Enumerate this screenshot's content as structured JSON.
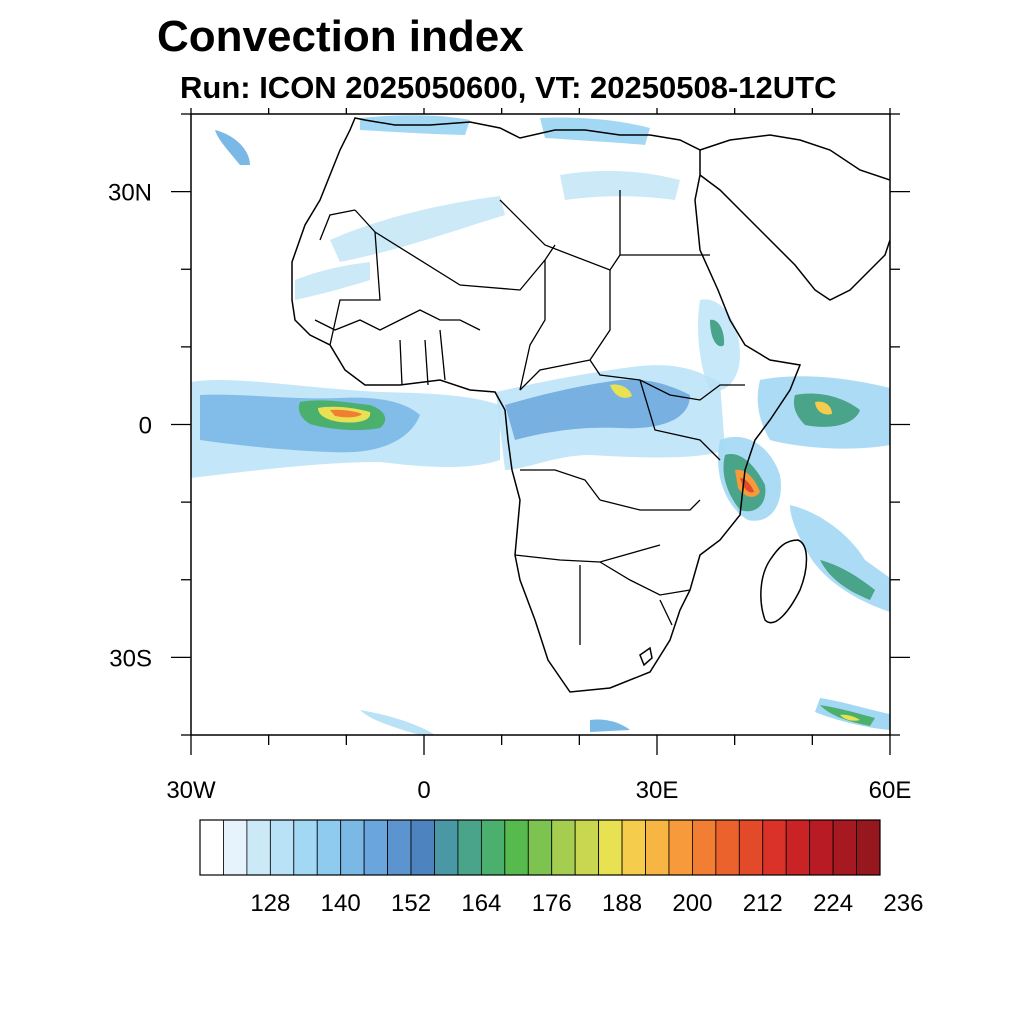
{
  "title": "Convection index",
  "subtitle": "Run: ICON 2025050600,  VT: 20250508-12UTC",
  "map": {
    "lon_range": [
      -30,
      60
    ],
    "lat_range": [
      -40,
      40
    ],
    "lon_labels": [
      {
        "lon": -30,
        "text": "30W"
      },
      {
        "lon": 0,
        "text": "0"
      },
      {
        "lon": 30,
        "text": "30E"
      },
      {
        "lon": 60,
        "text": "60E"
      }
    ],
    "lat_labels": [
      {
        "lat": 30,
        "text": "30N"
      },
      {
        "lat": 0,
        "text": "0"
      },
      {
        "lat": -30,
        "text": "30S"
      }
    ]
  },
  "colorbar": {
    "colors": [
      "#ffffff",
      "#e6f3fc",
      "#cce9f8",
      "#b9e2f7",
      "#a3d8f4",
      "#8ecbef",
      "#7ab8e6",
      "#6aa6dd",
      "#5b94cf",
      "#4d84c0",
      "#4a97a6",
      "#4aa48a",
      "#4bb06e",
      "#56ba4e",
      "#7cc350",
      "#a5cd4f",
      "#c8d74f",
      "#e8e152",
      "#f5cc4b",
      "#f7b544",
      "#f69a3b",
      "#f27e33",
      "#ec622c",
      "#e34a29",
      "#da3128",
      "#c92325",
      "#b81b23",
      "#a71920",
      "#96171d"
    ],
    "tick_labels": [
      "128",
      "140",
      "152",
      "164",
      "176",
      "188",
      "200",
      "212",
      "224",
      "236"
    ]
  },
  "convection_areas": [
    {
      "name": "gulf-of-guinea-atlantic-band",
      "color": "#7ab8e6"
    },
    {
      "name": "central-africa-band",
      "color": "#7ab8e6"
    },
    {
      "name": "east-africa-coast",
      "color": "#7ab8e6"
    },
    {
      "name": "western-indian-ocean",
      "color": "#7ab8e6"
    },
    {
      "name": "madagascar-channel",
      "color": "#7ab8e6"
    },
    {
      "name": "sahara-band",
      "color": "#a3d8f4"
    },
    {
      "name": "mediterranean-band",
      "color": "#a3d8f4"
    },
    {
      "name": "southern-ocean-south-east",
      "color": "#7ab8e6"
    }
  ]
}
